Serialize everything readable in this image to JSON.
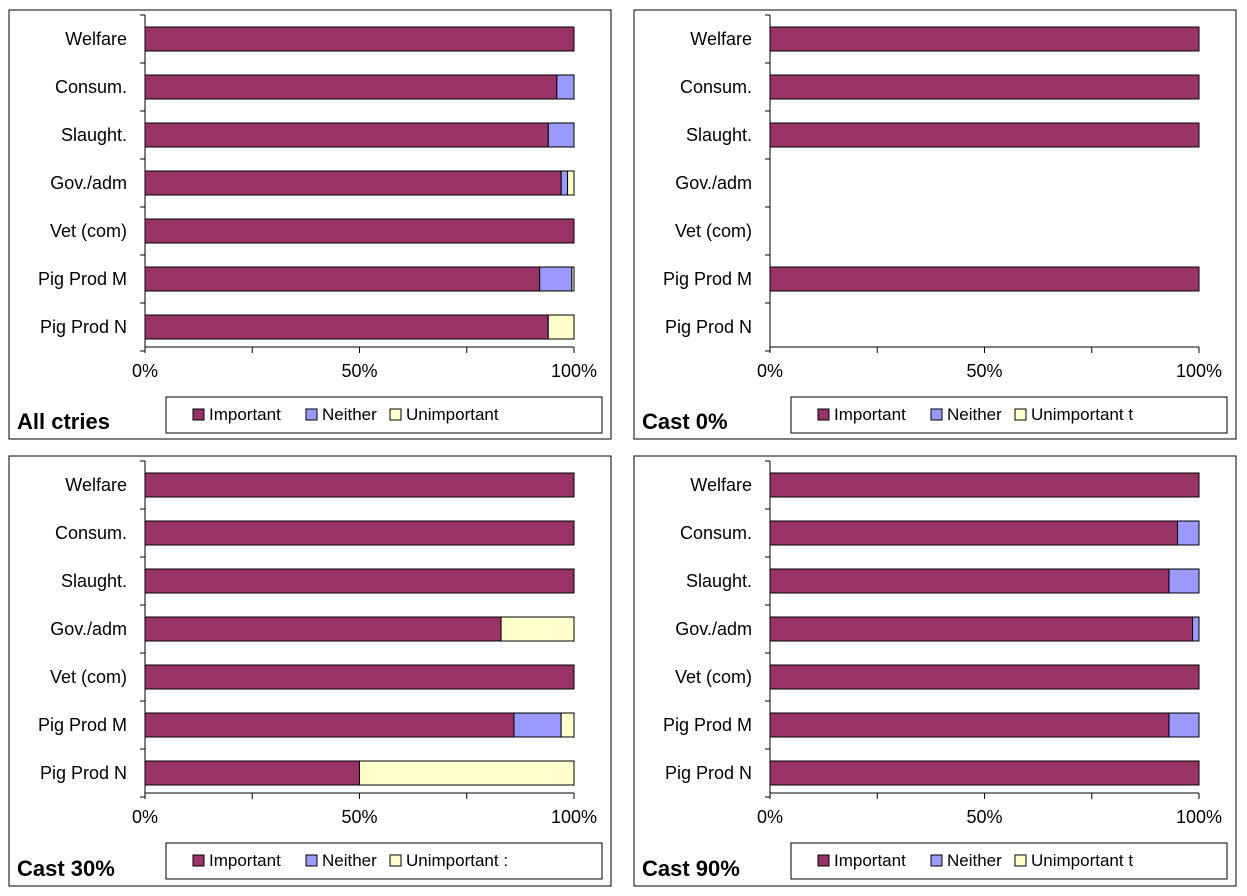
{
  "colors": {
    "Important": "#993366",
    "Neither": "#9999ff",
    "Unimportant": "#ffffcc"
  },
  "chart_data": [
    {
      "type": "bar",
      "orientation": "horizontal",
      "stacked": true,
      "title": "All ctries",
      "categories": [
        "Welfare",
        "Consum.",
        "Slaught.",
        "Gov./adm",
        "Vet (com)",
        "Pig Prod M",
        "Pig Prod N"
      ],
      "xlim": [
        0,
        100
      ],
      "xticks": [
        "0%",
        "50%",
        "100%"
      ],
      "legend": [
        "Important",
        "Neither",
        "Unimportant"
      ],
      "series": [
        {
          "name": "Important",
          "values": [
            100,
            96,
            94,
            97,
            100,
            92,
            94
          ]
        },
        {
          "name": "Neither",
          "values": [
            0,
            4,
            6,
            1.5,
            0,
            7.5,
            0
          ]
        },
        {
          "name": "Unimportant",
          "values": [
            0,
            0,
            0,
            1.5,
            0,
            0.5,
            6
          ]
        }
      ]
    },
    {
      "type": "bar",
      "orientation": "horizontal",
      "stacked": true,
      "title": "Cast 0%",
      "categories": [
        "Welfare",
        "Consum.",
        "Slaught.",
        "Gov./adm",
        "Vet (com)",
        "Pig Prod M",
        "Pig Prod N"
      ],
      "xlim": [
        0,
        100
      ],
      "xticks": [
        "0%",
        "50%",
        "100%"
      ],
      "legend": [
        "Important",
        "Neither",
        "Unimportant t"
      ],
      "series": [
        {
          "name": "Important",
          "values": [
            100,
            100,
            100,
            0,
            0,
            100,
            0
          ]
        },
        {
          "name": "Neither",
          "values": [
            0,
            0,
            0,
            0,
            0,
            0,
            0
          ]
        },
        {
          "name": "Unimportant",
          "values": [
            0,
            0,
            0,
            0,
            0,
            0,
            0
          ]
        }
      ]
    },
    {
      "type": "bar",
      "orientation": "horizontal",
      "stacked": true,
      "title": "Cast 30%",
      "categories": [
        "Welfare",
        "Consum.",
        "Slaught.",
        "Gov./adm",
        "Vet (com)",
        "Pig Prod M",
        "Pig Prod N"
      ],
      "xlim": [
        0,
        100
      ],
      "xticks": [
        "0%",
        "50%",
        "100%"
      ],
      "legend": [
        "Important",
        "Neither",
        "Unimportant :"
      ],
      "series": [
        {
          "name": "Important",
          "values": [
            100,
            100,
            100,
            83,
            100,
            86,
            50
          ]
        },
        {
          "name": "Neither",
          "values": [
            0,
            0,
            0,
            0,
            0,
            11,
            0
          ]
        },
        {
          "name": "Unimportant",
          "values": [
            0,
            0,
            0,
            17,
            0,
            3,
            50
          ]
        }
      ]
    },
    {
      "type": "bar",
      "orientation": "horizontal",
      "stacked": true,
      "title": "Cast 90%",
      "categories": [
        "Welfare",
        "Consum.",
        "Slaught.",
        "Gov./adm",
        "Vet (com)",
        "Pig Prod M",
        "Pig Prod N"
      ],
      "xlim": [
        0,
        100
      ],
      "xticks": [
        "0%",
        "50%",
        "100%"
      ],
      "legend": [
        "Important",
        "Neither",
        "Unimportant t"
      ],
      "series": [
        {
          "name": "Important",
          "values": [
            100,
            95,
            93,
            98.5,
            100,
            93,
            100
          ]
        },
        {
          "name": "Neither",
          "values": [
            0,
            5,
            7,
            1.5,
            0,
            7,
            0
          ]
        },
        {
          "name": "Unimportant",
          "values": [
            0,
            0,
            0,
            0,
            0,
            0,
            0
          ]
        }
      ]
    }
  ]
}
